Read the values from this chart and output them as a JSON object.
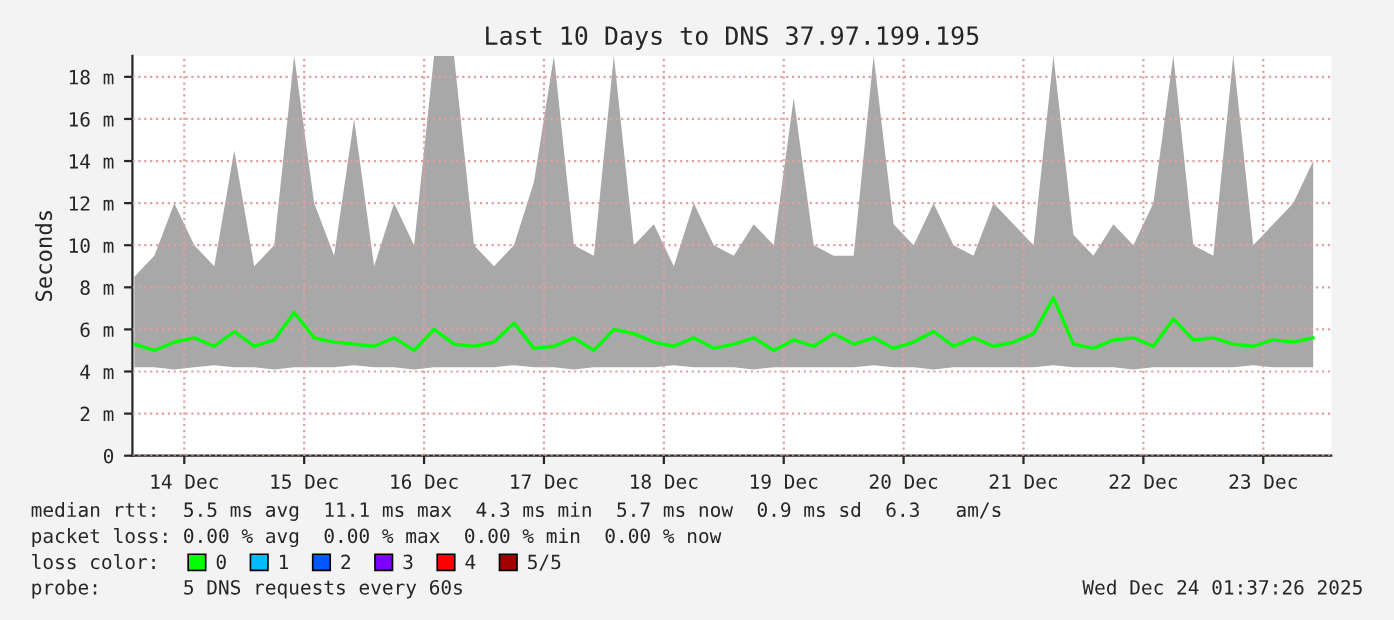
{
  "chart_data": {
    "type": "line",
    "title": "Last 10 Days to DNS 37.97.199.195",
    "ylabel": "Seconds",
    "x": [
      "2025-12-14T02:00",
      "2025-12-14T06:00",
      "2025-12-14T10:00",
      "2025-12-14T14:00",
      "2025-12-14T18:00",
      "2025-12-14T22:00",
      "2025-12-15T02:00",
      "2025-12-15T06:00",
      "2025-12-15T10:00",
      "2025-12-15T14:00",
      "2025-12-15T18:00",
      "2025-12-15T22:00",
      "2025-12-16T02:00",
      "2025-12-16T06:00",
      "2025-12-16T10:00",
      "2025-12-16T14:00",
      "2025-12-16T18:00",
      "2025-12-16T22:00",
      "2025-12-17T02:00",
      "2025-12-17T06:00",
      "2025-12-17T10:00",
      "2025-12-17T14:00",
      "2025-12-17T18:00",
      "2025-12-17T22:00",
      "2025-12-18T02:00",
      "2025-12-18T06:00",
      "2025-12-18T10:00",
      "2025-12-18T14:00",
      "2025-12-18T18:00",
      "2025-12-18T22:00",
      "2025-12-19T02:00",
      "2025-12-19T06:00",
      "2025-12-19T10:00",
      "2025-12-19T14:00",
      "2025-12-19T18:00",
      "2025-12-19T22:00",
      "2025-12-20T02:00",
      "2025-12-20T06:00",
      "2025-12-20T10:00",
      "2025-12-20T14:00",
      "2025-12-20T18:00",
      "2025-12-20T22:00",
      "2025-12-21T02:00",
      "2025-12-21T06:00",
      "2025-12-21T10:00",
      "2025-12-21T14:00",
      "2025-12-21T18:00",
      "2025-12-21T22:00",
      "2025-12-22T02:00",
      "2025-12-22T06:00",
      "2025-12-22T10:00",
      "2025-12-22T14:00",
      "2025-12-22T18:00",
      "2025-12-22T22:00",
      "2025-12-23T02:00",
      "2025-12-23T06:00",
      "2025-12-23T10:00",
      "2025-12-23T14:00",
      "2025-12-23T18:00",
      "2025-12-23T22:00"
    ],
    "series": [
      {
        "name": "0",
        "color": "#00ff00",
        "values": [
          5.3,
          5.0,
          5.4,
          5.6,
          5.2,
          5.9,
          5.2,
          5.5,
          6.8,
          5.6,
          5.4,
          5.3,
          5.2,
          5.6,
          5.0,
          6.0,
          5.3,
          5.2,
          5.4,
          6.3,
          5.1,
          5.2,
          5.6,
          5.0,
          6.0,
          5.8,
          5.4,
          5.2,
          5.6,
          5.1,
          5.3,
          5.6,
          5.0,
          5.5,
          5.2,
          5.8,
          5.3,
          5.6,
          5.1,
          5.4,
          5.9,
          5.2,
          5.6,
          5.2,
          5.4,
          5.8,
          7.5,
          5.3,
          5.1,
          5.5,
          5.6,
          5.2,
          6.5,
          5.5,
          5.6,
          5.3,
          5.2,
          5.5,
          5.4,
          5.6
        ],
        "lower": [
          4.2,
          4.2,
          4.1,
          4.2,
          4.3,
          4.2,
          4.2,
          4.1,
          4.2,
          4.2,
          4.2,
          4.3,
          4.2,
          4.2,
          4.1,
          4.2,
          4.2,
          4.2,
          4.2,
          4.3,
          4.2,
          4.2,
          4.1,
          4.2,
          4.2,
          4.2,
          4.2,
          4.3,
          4.2,
          4.2,
          4.2,
          4.1,
          4.2,
          4.2,
          4.2,
          4.2,
          4.2,
          4.3,
          4.2,
          4.2,
          4.1,
          4.2,
          4.2,
          4.2,
          4.2,
          4.2,
          4.3,
          4.2,
          4.2,
          4.2,
          4.1,
          4.2,
          4.2,
          4.2,
          4.2,
          4.2,
          4.3,
          4.2,
          4.2,
          4.2
        ],
        "upper": [
          8.5,
          9.5,
          12,
          10,
          9,
          14.5,
          9,
          10,
          19,
          12,
          9.5,
          16,
          9,
          12,
          10,
          19,
          19,
          10,
          9,
          10,
          13,
          19,
          10,
          9.5,
          19,
          10,
          11,
          9,
          12,
          10,
          9.5,
          11,
          10,
          17,
          10,
          9.5,
          9.5,
          19,
          11,
          10,
          12,
          10,
          9.5,
          12,
          11,
          10,
          19,
          10.5,
          9.5,
          11,
          10,
          12,
          19,
          10,
          9.5,
          19,
          10,
          11,
          12,
          14
        ]
      },
      {
        "name": "1",
        "color": "#00bbff",
        "values": [
          null,
          null,
          null,
          null,
          null,
          null,
          null,
          null,
          null,
          null,
          null,
          null,
          null,
          null,
          null,
          null,
          null,
          null,
          null,
          null,
          null,
          null,
          null,
          null,
          null,
          null,
          null,
          null,
          null,
          null,
          null,
          null,
          null,
          null,
          null,
          null,
          null,
          null,
          null,
          null,
          null,
          null,
          null,
          null,
          null,
          null,
          null,
          null,
          null,
          null,
          null,
          null,
          null,
          null,
          null,
          null,
          null,
          null,
          null,
          null
        ]
      },
      {
        "name": "2",
        "color": "#0059ff",
        "values": [
          null,
          null,
          null,
          null,
          null,
          null,
          null,
          null,
          null,
          null,
          null,
          null,
          null,
          null,
          null,
          null,
          null,
          null,
          null,
          null,
          null,
          null,
          null,
          null,
          null,
          null,
          null,
          null,
          null,
          null,
          null,
          null,
          null,
          null,
          null,
          null,
          null,
          null,
          null,
          null,
          null,
          null,
          null,
          null,
          null,
          null,
          null,
          null,
          null,
          null,
          null,
          null,
          null,
          null,
          null,
          null,
          null,
          null,
          null,
          null
        ]
      },
      {
        "name": "3",
        "color": "#7e00ff",
        "values": [
          null,
          null,
          null,
          null,
          null,
          null,
          null,
          null,
          null,
          null,
          null,
          null,
          null,
          null,
          null,
          null,
          null,
          null,
          null,
          null,
          null,
          null,
          null,
          null,
          null,
          null,
          null,
          null,
          null,
          null,
          null,
          null,
          null,
          null,
          null,
          null,
          null,
          null,
          null,
          null,
          null,
          null,
          null,
          null,
          null,
          null,
          null,
          null,
          null,
          null,
          null,
          null,
          null,
          null,
          null,
          null,
          null,
          null,
          null,
          null
        ]
      },
      {
        "name": "4",
        "color": "#ff0000",
        "values": [
          null,
          null,
          null,
          null,
          null,
          null,
          null,
          null,
          null,
          null,
          null,
          null,
          null,
          null,
          null,
          null,
          null,
          null,
          null,
          null,
          null,
          null,
          null,
          null,
          null,
          null,
          null,
          null,
          null,
          null,
          null,
          null,
          null,
          null,
          null,
          null,
          null,
          null,
          null,
          null,
          null,
          null,
          null,
          null,
          null,
          null,
          null,
          null,
          null,
          null,
          null,
          null,
          null,
          null,
          null,
          null,
          null,
          null,
          null,
          null
        ]
      },
      {
        "name": "5/5",
        "color": "#a10000",
        "values": [
          null,
          null,
          null,
          null,
          null,
          null,
          null,
          null,
          null,
          null,
          null,
          null,
          null,
          null,
          null,
          null,
          null,
          null,
          null,
          null,
          null,
          null,
          null,
          null,
          null,
          null,
          null,
          null,
          null,
          null,
          null,
          null,
          null,
          null,
          null,
          null,
          null,
          null,
          null,
          null,
          null,
          null,
          null,
          null,
          null,
          null,
          null,
          null,
          null,
          null,
          null,
          null,
          null,
          null,
          null,
          null,
          null,
          null,
          null,
          null
        ]
      }
    ],
    "xlim": [
      "2025-12-14T01:37",
      "2025-12-24T01:37"
    ],
    "xticks": [
      {
        "value": "2025-12-14T12:00",
        "label": "14 Dec"
      },
      {
        "value": "2025-12-15T12:00",
        "label": "15 Dec"
      },
      {
        "value": "2025-12-16T12:00",
        "label": "16 Dec"
      },
      {
        "value": "2025-12-17T12:00",
        "label": "17 Dec"
      },
      {
        "value": "2025-12-18T12:00",
        "label": "18 Dec"
      },
      {
        "value": "2025-12-19T12:00",
        "label": "19 Dec"
      },
      {
        "value": "2025-12-20T12:00",
        "label": "20 Dec"
      },
      {
        "value": "2025-12-21T12:00",
        "label": "21 Dec"
      },
      {
        "value": "2025-12-22T12:00",
        "label": "22 Dec"
      },
      {
        "value": "2025-12-23T12:00",
        "label": "23 Dec"
      }
    ],
    "ylim": [
      0,
      19
    ],
    "yticks": [
      0,
      {
        "value": 2,
        "label": "2 m"
      },
      {
        "value": 4,
        "label": "4 m"
      },
      {
        "value": 6,
        "label": "6 m"
      },
      {
        "value": 8,
        "label": "8 m"
      },
      {
        "value": 10,
        "label": "10 m"
      },
      {
        "value": 12,
        "label": "12 m"
      },
      {
        "value": 14,
        "label": "14 m"
      },
      {
        "value": 16,
        "label": "16 m"
      },
      {
        "value": 18,
        "label": "18 m"
      }
    ],
    "grid": true,
    "legend": "bottom",
    "legend_title": "loss color:",
    "annotations": [
      "median rtt:  5.5 ms avg  11.1 ms max  4.3 ms min  5.7 ms now  0.9 ms sd  6.3   am/s",
      "packet loss: 0.00 % avg  0.00 % max  0.00 % min  0.00 % now",
      "probe:       5 DNS requests every 60s",
      "Wed Dec 24 01:37:26 2025"
    ]
  }
}
